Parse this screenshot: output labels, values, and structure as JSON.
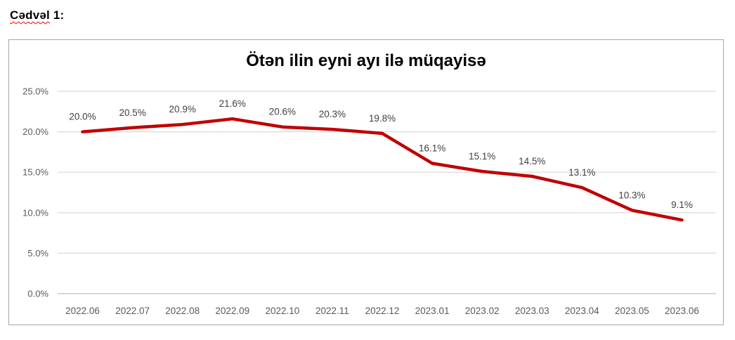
{
  "page": {
    "heading": {
      "word": "Cədvəl",
      "rest": " 1:"
    }
  },
  "chart_data": {
    "type": "line",
    "title": "Ötən ilin eyni ayı ilə müqayisə",
    "categories": [
      "2022.06",
      "2022.07",
      "2022.08",
      "2022.09",
      "2022.10",
      "2022.11",
      "2022.12",
      "2023.01",
      "2023.02",
      "2023.03",
      "2023.04",
      "2023.05",
      "2023.06"
    ],
    "values": [
      20.0,
      20.5,
      20.9,
      21.6,
      20.6,
      20.3,
      19.8,
      16.1,
      15.1,
      14.5,
      13.1,
      10.3,
      9.1
    ],
    "point_labels": [
      "20.0%",
      "20.5%",
      "20.9%",
      "21.6%",
      "20.6%",
      "20.3%",
      "19.8%",
      "16.1%",
      "15.1%",
      "14.5%",
      "13.1%",
      "10.3%",
      "9.1%"
    ],
    "y_ticks": [
      "25.0%",
      "20.0%",
      "15.0%",
      "10.0%",
      "5.0%",
      "0.0%"
    ],
    "ylim": [
      0,
      25
    ],
    "xlabel": "",
    "ylabel": "",
    "grid": "horizontal",
    "legend_position": "none",
    "colors": {
      "series": "#c00000",
      "gridline": "#d9d9d9",
      "axis_line": "#bfbfbf",
      "axis_label": "#595959",
      "data_label": "#404040",
      "title": "#000000",
      "chart_border": "#a6a6a6"
    }
  }
}
